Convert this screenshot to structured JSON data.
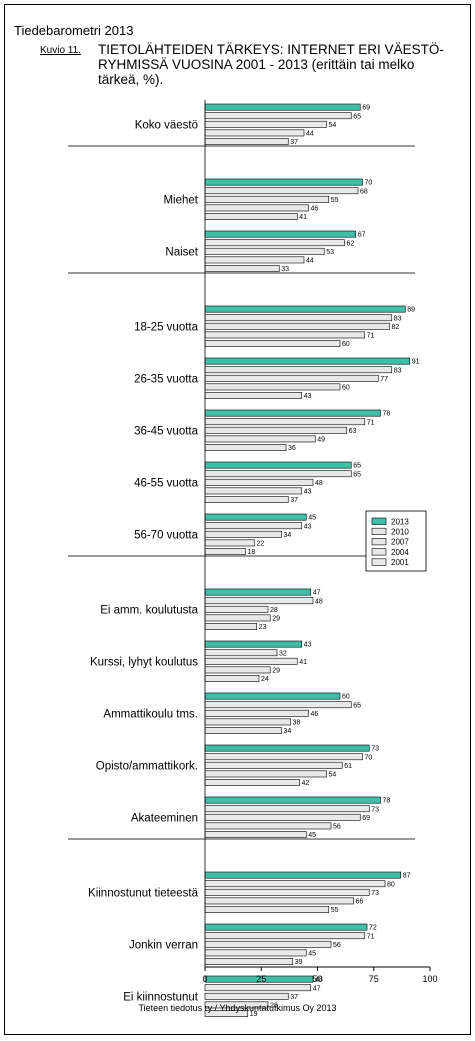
{
  "header": {
    "title": "Tiedebarometri 2013",
    "figure_number": "Kuvio 11.",
    "figure_title": "TIETOLÄHTEIDEN TÄRKEYS: INTERNET ERI VÄESTÖ-RYHMISSÄ VUOSINA 2001 - 2013 (erittäin tai melko tärkeä, %)."
  },
  "footer": {
    "note": "Tieteen tiedotus ry / Yhdyskuntatutkimus Oy 2013"
  },
  "colors": {
    "highlight": "#40bfa8",
    "other": "#e8e8e8",
    "stroke": "#000000",
    "divider": "#7a7a7a"
  },
  "chart_data": {
    "type": "bar",
    "orientation": "horizontal",
    "xlim": [
      0,
      100
    ],
    "xticks": [
      0,
      25,
      50,
      75,
      100
    ],
    "series": [
      {
        "name": "2013",
        "color": "#40bfa8"
      },
      {
        "name": "2010",
        "color": "#e8e8e8"
      },
      {
        "name": "2007",
        "color": "#e8e8e8"
      },
      {
        "name": "2004",
        "color": "#e8e8e8"
      },
      {
        "name": "2001",
        "color": "#e8e8e8"
      }
    ],
    "legend_position": "right, beside 56-70 vuotta",
    "groups": [
      {
        "categories": [
          {
            "label": "Koko väestö",
            "values": [
              69,
              65,
              54,
              44,
              37
            ]
          }
        ]
      },
      {
        "categories": [
          {
            "label": "Miehet",
            "values": [
              70,
              68,
              55,
              46,
              41
            ]
          },
          {
            "label": "Naiset",
            "values": [
              67,
              62,
              53,
              44,
              33
            ]
          }
        ]
      },
      {
        "categories": [
          {
            "label": "18-25 vuotta",
            "values": [
              89,
              83,
              82,
              71,
              60
            ]
          },
          {
            "label": "26-35 vuotta",
            "values": [
              91,
              83,
              77,
              60,
              43
            ]
          },
          {
            "label": "36-45 vuotta",
            "values": [
              78,
              71,
              63,
              49,
              36
            ]
          },
          {
            "label": "46-55 vuotta",
            "values": [
              65,
              65,
              48,
              43,
              37
            ]
          },
          {
            "label": "56-70 vuotta",
            "values": [
              45,
              43,
              34,
              22,
              18
            ]
          }
        ]
      },
      {
        "categories": [
          {
            "label": "Ei amm. koulutusta",
            "values": [
              47,
              48,
              28,
              29,
              23
            ]
          },
          {
            "label": "Kurssi, lyhyt koulutus",
            "values": [
              43,
              32,
              41,
              29,
              24
            ]
          },
          {
            "label": "Ammattikoulu tms.",
            "values": [
              60,
              65,
              46,
              38,
              34
            ]
          },
          {
            "label": "Opisto/ammattikork.",
            "values": [
              73,
              70,
              61,
              54,
              42
            ]
          },
          {
            "label": "Akateeminen",
            "values": [
              78,
              73,
              69,
              56,
              45
            ]
          }
        ]
      },
      {
        "categories": [
          {
            "label": "Kiinnostunut tieteestä",
            "values": [
              87,
              80,
              73,
              66,
              55
            ]
          },
          {
            "label": "Jonkin verran",
            "values": [
              72,
              71,
              56,
              45,
              39
            ]
          },
          {
            "label": "Ei kiinnostunut",
            "values": [
              48,
              47,
              37,
              28,
              19
            ]
          }
        ]
      }
    ]
  }
}
